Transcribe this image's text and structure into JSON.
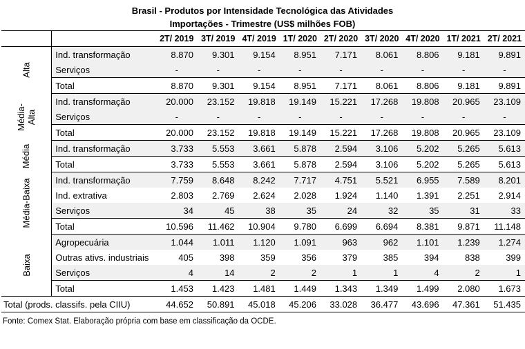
{
  "title_line1": "Brasil - Produtos por Intensidade Tecnológica das Atividades",
  "title_line2": "Importações - Trimestre (US$ milhões FOB)",
  "columns": [
    "2T/ 2019",
    "3T/ 2019",
    "4T/ 2019",
    "1T/ 2020",
    "2T/ 2020",
    "3T/ 2020",
    "4T/ 2020",
    "1T/ 2021",
    "2T/ 2021"
  ],
  "groups": {
    "alta": {
      "label": "Alta",
      "rows": [
        {
          "label": "Ind. transformação",
          "values": [
            "8.870",
            "9.301",
            "9.154",
            "8.951",
            "7.171",
            "8.061",
            "8.806",
            "9.181",
            "9.891"
          ]
        },
        {
          "label": "Serviços",
          "values": [
            "-",
            "-",
            "-",
            "-",
            "-",
            "-",
            "-",
            "-",
            "-"
          ]
        },
        {
          "label": "Total",
          "values": [
            "8.870",
            "9.301",
            "9.154",
            "8.951",
            "7.171",
            "8.061",
            "8.806",
            "9.181",
            "9.891"
          ]
        }
      ]
    },
    "media_alta": {
      "label_line1": "Média-",
      "label_line2": "Alta",
      "rows": [
        {
          "label": "Ind. transformação",
          "values": [
            "20.000",
            "23.152",
            "19.818",
            "19.149",
            "15.221",
            "17.268",
            "19.808",
            "20.965",
            "23.109"
          ]
        },
        {
          "label": "Serviços",
          "values": [
            "-",
            "-",
            "-",
            "-",
            "-",
            "-",
            "-",
            "-",
            "-"
          ]
        },
        {
          "label": "Total",
          "values": [
            "20.000",
            "23.152",
            "19.818",
            "19.149",
            "15.221",
            "17.268",
            "19.808",
            "20.965",
            "23.109"
          ]
        }
      ]
    },
    "media": {
      "label": "Média",
      "rows": [
        {
          "label": "Ind. transformação",
          "values": [
            "3.733",
            "5.553",
            "3.661",
            "5.878",
            "2.594",
            "3.106",
            "5.202",
            "5.265",
            "5.613"
          ]
        },
        {
          "label": "Total",
          "values": [
            "3.733",
            "5.553",
            "3.661",
            "5.878",
            "2.594",
            "3.106",
            "5.202",
            "5.265",
            "5.613"
          ]
        }
      ]
    },
    "media_baixa": {
      "label": "Média-Baixa",
      "rows": [
        {
          "label": "Ind. transformação",
          "values": [
            "7.759",
            "8.648",
            "8.242",
            "7.717",
            "4.751",
            "5.521",
            "6.955",
            "7.589",
            "8.201"
          ]
        },
        {
          "label": "Ind. extrativa",
          "values": [
            "2.803",
            "2.769",
            "2.624",
            "2.028",
            "1.924",
            "1.140",
            "1.391",
            "2.251",
            "2.914"
          ]
        },
        {
          "label": "Serviços",
          "values": [
            "34",
            "45",
            "38",
            "35",
            "24",
            "32",
            "35",
            "31",
            "33"
          ]
        },
        {
          "label": "Total",
          "values": [
            "10.596",
            "11.462",
            "10.904",
            "9.780",
            "6.699",
            "6.694",
            "8.381",
            "9.871",
            "11.148"
          ]
        }
      ]
    },
    "baixa": {
      "label": "Baixa",
      "rows": [
        {
          "label": "Agropecuária",
          "values": [
            "1.044",
            "1.011",
            "1.120",
            "1.091",
            "963",
            "962",
            "1.101",
            "1.239",
            "1.274"
          ]
        },
        {
          "label": "Outras ativs. industriais",
          "values": [
            "405",
            "398",
            "359",
            "356",
            "379",
            "385",
            "394",
            "838",
            "399"
          ]
        },
        {
          "label": "Serviços",
          "values": [
            "4",
            "14",
            "2",
            "2",
            "1",
            "1",
            "4",
            "2",
            "1"
          ]
        },
        {
          "label": "Total",
          "values": [
            "1.453",
            "1.423",
            "1.481",
            "1.449",
            "1.343",
            "1.349",
            "1.499",
            "2.080",
            "1.673"
          ]
        }
      ]
    }
  },
  "grand_total": {
    "label": "Total (prods. classifs. pela CIIU)",
    "values": [
      "44.652",
      "50.891",
      "45.018",
      "45.206",
      "33.028",
      "36.477",
      "43.696",
      "47.361",
      "51.435"
    ]
  },
  "source": "Fonte: Comex Stat. Elaboração própria com base em classificação da OCDE."
}
